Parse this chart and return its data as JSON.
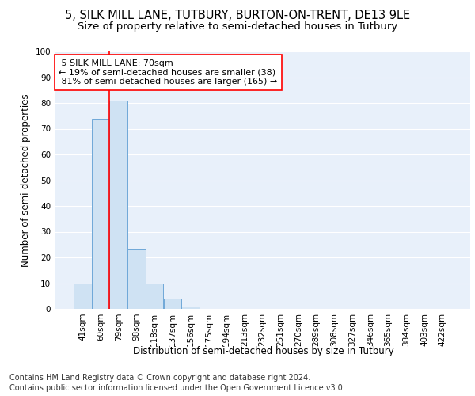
{
  "title1": "5, SILK MILL LANE, TUTBURY, BURTON-ON-TRENT, DE13 9LE",
  "title2": "Size of property relative to semi-detached houses in Tutbury",
  "xlabel": "Distribution of semi-detached houses by size in Tutbury",
  "ylabel": "Number of semi-detached properties",
  "categories": [
    "41sqm",
    "60sqm",
    "79sqm",
    "98sqm",
    "118sqm",
    "137sqm",
    "156sqm",
    "175sqm",
    "194sqm",
    "213sqm",
    "232sqm",
    "251sqm",
    "270sqm",
    "289sqm",
    "308sqm",
    "327sqm",
    "346sqm",
    "365sqm",
    "384sqm",
    "403sqm",
    "422sqm"
  ],
  "values": [
    10,
    74,
    81,
    23,
    10,
    4,
    1,
    0,
    0,
    0,
    0,
    0,
    0,
    0,
    0,
    0,
    0,
    0,
    0,
    0,
    0
  ],
  "bar_color": "#cfe2f3",
  "bar_edge_color": "#6fa8d8",
  "property_label": "5 SILK MILL LANE: 70sqm",
  "pct_smaller": 19,
  "count_smaller": 38,
  "pct_larger": 81,
  "count_larger": 165,
  "vline_x": 1.5,
  "ylim": [
    0,
    100
  ],
  "yticks": [
    0,
    10,
    20,
    30,
    40,
    50,
    60,
    70,
    80,
    90,
    100
  ],
  "footer1": "Contains HM Land Registry data © Crown copyright and database right 2024.",
  "footer2": "Contains public sector information licensed under the Open Government Licence v3.0.",
  "plot_bg_color": "#e8f0fa",
  "grid_color": "#ffffff",
  "title_fontsize": 10.5,
  "subtitle_fontsize": 9.5,
  "axis_label_fontsize": 8.5,
  "tick_fontsize": 7.5,
  "annotation_fontsize": 8,
  "footer_fontsize": 7
}
